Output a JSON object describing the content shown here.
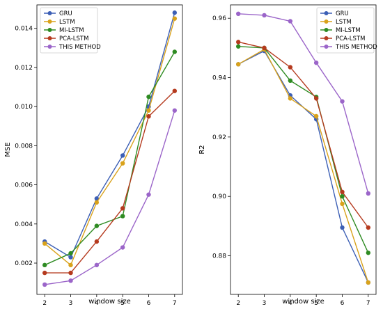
{
  "chart_data": [
    {
      "type": "line",
      "xlabel": "window size",
      "ylabel": "MSE",
      "x": [
        2,
        3,
        4,
        5,
        6,
        7
      ],
      "xlim": [
        1.7,
        7.3
      ],
      "ylim": [
        0.0004,
        0.0152
      ],
      "yticks": [
        0.002,
        0.004,
        0.006,
        0.008,
        0.01,
        0.012,
        0.014
      ],
      "ytick_labels": [
        "0.002",
        "0.004",
        "0.006",
        "0.008",
        "0.010",
        "0.012",
        "0.014"
      ],
      "legend_position": "upper-left",
      "grid": false,
      "series": [
        {
          "name": "GRU",
          "color": "#3c5fb5",
          "values": [
            0.0031,
            0.0023,
            0.0053,
            0.0075,
            0.01,
            0.0148
          ]
        },
        {
          "name": "LSTM",
          "color": "#d9a21b",
          "values": [
            0.003,
            0.0019,
            0.0051,
            0.0071,
            0.0098,
            0.0145
          ]
        },
        {
          "name": "MI-LSTM",
          "color": "#2e8b22",
          "values": [
            0.0019,
            0.0025,
            0.0039,
            0.0044,
            0.0105,
            0.0128
          ]
        },
        {
          "name": "PCA-LSTM",
          "color": "#b53a1e",
          "values": [
            0.0015,
            0.0015,
            0.0031,
            0.0048,
            0.0095,
            0.0108
          ]
        },
        {
          "name": "THIS METHOD",
          "color": "#9b65c9",
          "values": [
            0.0009,
            0.0011,
            0.0019,
            0.0028,
            0.0055,
            0.0098
          ]
        }
      ]
    },
    {
      "type": "line",
      "xlabel": "window size",
      "ylabel": "R2",
      "x": [
        2,
        3,
        4,
        5,
        6,
        7
      ],
      "xlim": [
        1.7,
        7.3
      ],
      "ylim": [
        0.867,
        0.9645
      ],
      "yticks": [
        0.88,
        0.9,
        0.92,
        0.94,
        0.96
      ],
      "ytick_labels": [
        "0.88",
        "0.90",
        "0.92",
        "0.94",
        "0.96"
      ],
      "legend_position": "upper-right",
      "grid": false,
      "series": [
        {
          "name": "GRU",
          "color": "#3c5fb5",
          "values": [
            0.9445,
            0.949,
            0.934,
            0.926,
            0.8895,
            0.871
          ]
        },
        {
          "name": "LSTM",
          "color": "#d9a21b",
          "values": [
            0.9445,
            0.9495,
            0.933,
            0.927,
            0.8975,
            0.871
          ]
        },
        {
          "name": "MI-LSTM",
          "color": "#2e8b22",
          "values": [
            0.9505,
            0.95,
            0.939,
            0.9335,
            0.9,
            0.881
          ]
        },
        {
          "name": "PCA-LSTM",
          "color": "#b53a1e",
          "values": [
            0.952,
            0.95,
            0.9435,
            0.933,
            0.9015,
            0.8895
          ]
        },
        {
          "name": "THIS METHOD",
          "color": "#9b65c9",
          "values": [
            0.9615,
            0.961,
            0.959,
            0.945,
            0.932,
            0.901
          ]
        }
      ]
    }
  ]
}
